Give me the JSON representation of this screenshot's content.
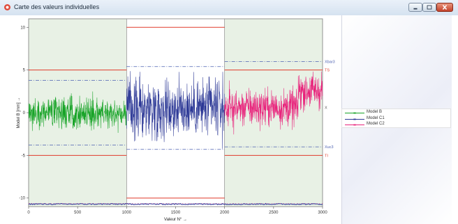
{
  "window": {
    "title": "Carte des valeurs individuelles"
  },
  "colors": {
    "accent_b": "#17a327",
    "accent_c1": "#2c3896",
    "accent_c2": "#e8227b",
    "limit_line": "#e03a2a",
    "band_bg": "#e8f1e5"
  },
  "chart_data": {
    "type": "line",
    "xlabel": "Valeur N° →",
    "ylabel": "Model B [mm] →",
    "xlim": [
      0,
      3000
    ],
    "ylim": [
      -11,
      11
    ],
    "x_ticks": [
      0,
      500,
      1000,
      1500,
      2000,
      2500,
      3000
    ],
    "y_ticks": [
      -10,
      -5,
      0,
      5,
      10
    ],
    "grid": false,
    "legend_position": "right",
    "segments": [
      {
        "x_range": [
          0,
          1000
        ],
        "tolerance_upper": 5,
        "tolerance_lower": -5,
        "control_upper": 3.8,
        "control_lower": -3.8
      },
      {
        "x_range": [
          1000,
          2000
        ],
        "tolerance_upper": 10,
        "tolerance_lower": -10,
        "control_upper": 5.4,
        "control_lower": -4.3
      },
      {
        "x_range": [
          2000,
          3000
        ],
        "tolerance_upper": 5,
        "tolerance_lower": -5,
        "control_upper": 6.0,
        "control_lower": -4.0
      }
    ],
    "series": [
      {
        "name": "Model B",
        "x_range": [
          0,
          1000
        ],
        "center": 0.0,
        "spread": 0.9,
        "color": "#17a327"
      },
      {
        "name": "Model C1",
        "x_range": [
          1000,
          2000
        ],
        "center": 0.5,
        "spread": 1.7,
        "color": "#2c3896"
      },
      {
        "name": "Model C2",
        "x_range": [
          2000,
          3000
        ],
        "center": 0.6,
        "spread": 1.1,
        "color": "#e8227b"
      }
    ],
    "bottom_band_value": -10.7,
    "right_labels": {
      "xbar_upper": "Xbar3",
      "ts": "TS",
      "center": "X",
      "xbar_lower": "Xuc3",
      "ti": "TI"
    }
  },
  "legend": {
    "items": [
      {
        "label": "Model B",
        "color": "#17a327"
      },
      {
        "label": "Model C1",
        "color": "#2c3896"
      },
      {
        "label": "Model C2",
        "color": "#e8227b"
      }
    ]
  }
}
